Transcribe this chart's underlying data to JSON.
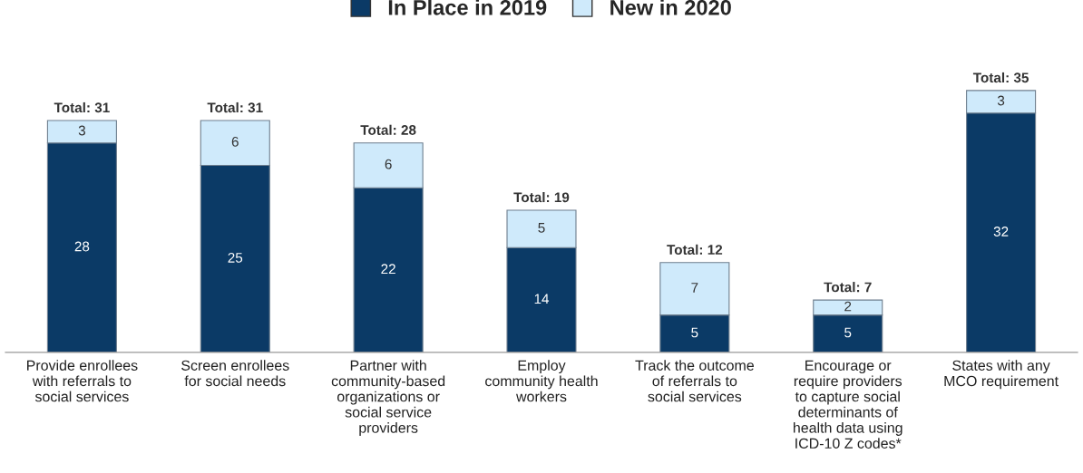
{
  "chart_data": {
    "type": "bar",
    "stacked": true,
    "data_labels": true,
    "legend": "top",
    "grid": false,
    "categories": [
      "Provide enrollees\nwith referrals to\nsocial services",
      "Screen enrollees\nfor social needs",
      "Partner with\ncommunity-based\norganizations or\nsocial service\nproviders",
      "Employ\ncommunity health\nworkers",
      "Track the outcome\nof referrals to\nsocial services",
      "Encourage or\nrequire providers\nto capture social\ndeterminants of\nhealth data using\nICD-10 Z codes*",
      "States with any\nMCO requirement"
    ],
    "series": [
      {
        "name": "In Place in 2019",
        "color": "#0b3a66",
        "values": [
          28,
          25,
          22,
          14,
          5,
          5,
          32
        ]
      },
      {
        "name": "New in 2020",
        "color": "#cfeafb",
        "values": [
          3,
          6,
          6,
          5,
          7,
          2,
          3
        ]
      }
    ],
    "totals": [
      "Total: 31",
      "Total: 31",
      "Total: 28",
      "Total: 19",
      "Total: 12",
      "Total: 7",
      "Total: 35"
    ]
  }
}
